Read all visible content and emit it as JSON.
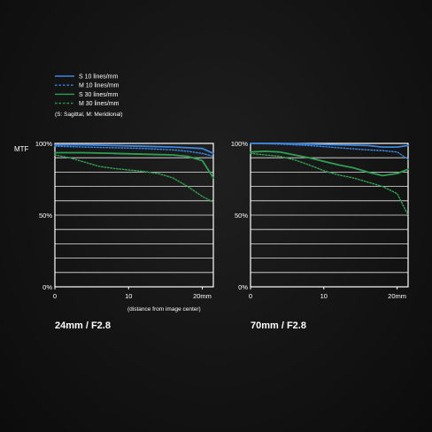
{
  "legend": {
    "items": [
      {
        "label": "S 10 lines/mm",
        "color": "#3a86e0",
        "dashed": false
      },
      {
        "label": "M 10 lines/mm",
        "color": "#3a86e0",
        "dashed": true
      },
      {
        "label": "S 30 lines/mm",
        "color": "#2fa052",
        "dashed": false
      },
      {
        "label": "M 30 lines/mm",
        "color": "#2fa052",
        "dashed": true
      }
    ],
    "note": "(S: Sagittal, M: Meridional)"
  },
  "y_axis_label": "MTF",
  "x_axis_note": "(distance from image center)",
  "chart_data": [
    {
      "type": "line",
      "title": "24mm / F2.8",
      "xlim": [
        0,
        21.5
      ],
      "ylim": [
        0,
        100
      ],
      "xticks": [
        "0",
        "10",
        "20mm"
      ],
      "yticks": [
        "0%",
        "50%",
        "100%"
      ],
      "grid": true,
      "series": [
        {
          "name": "S 10 lines/mm",
          "x": [
            0,
            4,
            8,
            12,
            16,
            18,
            20,
            21.5
          ],
          "y": [
            99,
            99,
            98.5,
            98,
            97.5,
            97,
            96.5,
            93
          ]
        },
        {
          "name": "M 10 lines/mm",
          "x": [
            0,
            4,
            8,
            12,
            16,
            18,
            20,
            21.5
          ],
          "y": [
            98,
            97.5,
            97,
            96.5,
            95.5,
            94.5,
            93,
            91
          ]
        },
        {
          "name": "S 30 lines/mm",
          "x": [
            0,
            4,
            8,
            12,
            16,
            18,
            20,
            21.5
          ],
          "y": [
            93.5,
            93.5,
            93,
            92.5,
            92,
            91,
            88,
            76
          ]
        },
        {
          "name": "M 30 lines/mm",
          "x": [
            0,
            2,
            4,
            6,
            8,
            10,
            12,
            14,
            16,
            18,
            20,
            21.5
          ],
          "y": [
            92,
            90,
            87,
            84,
            82.5,
            81.5,
            80.5,
            79,
            76,
            70,
            63,
            59
          ]
        }
      ]
    },
    {
      "type": "line",
      "title": "70mm / F2.8",
      "xlim": [
        0,
        21.5
      ],
      "ylim": [
        0,
        100
      ],
      "xticks": [
        "0",
        "10",
        "20mm"
      ],
      "yticks": [
        "0%",
        "50%",
        "100%"
      ],
      "grid": true,
      "series": [
        {
          "name": "S 10 lines/mm",
          "x": [
            0,
            4,
            8,
            12,
            16,
            18,
            20,
            21.5
          ],
          "y": [
            100,
            100,
            99.5,
            99,
            98.5,
            97.5,
            97.5,
            98.5
          ]
        },
        {
          "name": "M 10 lines/mm",
          "x": [
            0,
            4,
            8,
            12,
            16,
            18,
            20,
            21.5
          ],
          "y": [
            100,
            99.5,
            98.5,
            97,
            95.5,
            95,
            94,
            89
          ]
        },
        {
          "name": "S 30 lines/mm",
          "x": [
            0,
            2,
            4,
            6,
            8,
            10,
            12,
            14,
            16,
            18,
            20,
            21.5
          ],
          "y": [
            94,
            94.5,
            94,
            92,
            90,
            87.5,
            85,
            83,
            80,
            77.5,
            79,
            82
          ]
        },
        {
          "name": "M 30 lines/mm",
          "x": [
            0,
            2,
            4,
            6,
            8,
            10,
            12,
            14,
            16,
            18,
            20,
            21.5
          ],
          "y": [
            93,
            92,
            91,
            88.5,
            85,
            81,
            78,
            76,
            73,
            70,
            65,
            50
          ]
        }
      ]
    }
  ]
}
